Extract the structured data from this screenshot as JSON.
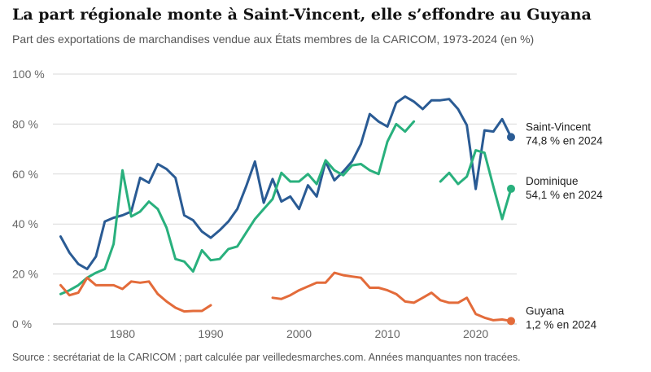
{
  "title": "La part régionale monte à Saint-Vincent, elle s’effondre au Guyana",
  "subtitle": "Part des exportations de marchandises vendue aux États membres de la CARICOM, 1973-2024 (en %)",
  "source": "Source : secrétariat de la CARICOM ; part calculée par veilledesmarches.com. Années manquantes non tracées.",
  "colors": {
    "saint_vincent": "#2a5b94",
    "dominique": "#29b07d",
    "guyana": "#e36b3a",
    "grid": "#d9d9d9"
  },
  "chart_data": {
    "type": "line",
    "xlim": [
      1973,
      2024
    ],
    "ylim": [
      0,
      100
    ],
    "x_ticks": [
      1980,
      1990,
      2000,
      2010,
      2020
    ],
    "y_ticks": [
      0,
      20,
      40,
      60,
      80,
      100
    ],
    "y_tick_labels": [
      "0 %",
      "20 %",
      "40 %",
      "60 %",
      "80 %",
      "100 %"
    ],
    "grid": true,
    "series": [
      {
        "name": "Saint-Vincent",
        "key": "saint_vincent",
        "end_label": "74,8 % en 2024",
        "points": [
          [
            1973,
            35
          ],
          [
            1974,
            28.5
          ],
          [
            1975,
            24
          ],
          [
            1976,
            22
          ],
          [
            1977,
            27
          ],
          [
            1978,
            41
          ],
          [
            1979,
            42.5
          ],
          [
            1980,
            43.5
          ],
          [
            1981,
            45
          ],
          [
            1982,
            58.5
          ],
          [
            1983,
            56.5
          ],
          [
            1984,
            64
          ],
          [
            1985,
            62
          ],
          [
            1986,
            58.5
          ],
          [
            1987,
            43.5
          ],
          [
            1988,
            41.5
          ],
          [
            1989,
            37
          ],
          [
            1990,
            34.5
          ],
          [
            1991,
            37.5
          ],
          [
            1992,
            41
          ],
          [
            1993,
            46
          ],
          [
            1994,
            55
          ],
          [
            1995,
            65
          ],
          [
            1996,
            48.5
          ],
          [
            1997,
            58
          ],
          [
            1998,
            49
          ],
          [
            1999,
            51
          ],
          [
            2000,
            46
          ],
          [
            2001,
            55.5
          ],
          [
            2002,
            51
          ],
          [
            2003,
            65
          ],
          [
            2004,
            57.5
          ],
          [
            2005,
            61
          ],
          [
            2006,
            65
          ],
          [
            2007,
            72
          ],
          [
            2008,
            84
          ],
          [
            2009,
            81
          ],
          [
            2010,
            79
          ],
          [
            2011,
            88.5
          ],
          [
            2012,
            91
          ],
          [
            2013,
            89
          ],
          [
            2014,
            86
          ],
          [
            2015,
            89.5
          ],
          [
            2016,
            89.5
          ],
          [
            2017,
            90
          ],
          [
            2018,
            86
          ],
          [
            2019,
            79.5
          ],
          [
            2020,
            54
          ],
          [
            2021,
            77.5
          ],
          [
            2022,
            77
          ],
          [
            2023,
            82
          ],
          [
            2024,
            74.8
          ]
        ]
      },
      {
        "name": "Dominique",
        "key": "dominique",
        "end_label": "54,1 % en 2024",
        "points": [
          [
            1973,
            12
          ],
          [
            1974,
            13.5
          ],
          [
            1975,
            15.5
          ],
          [
            1976,
            18.5
          ],
          [
            1977,
            20.5
          ],
          [
            1978,
            22
          ],
          [
            1979,
            32
          ],
          [
            1980,
            61.5
          ],
          [
            1981,
            43
          ],
          [
            1982,
            45
          ],
          [
            1983,
            49
          ],
          [
            1984,
            46
          ],
          [
            1985,
            38.5
          ],
          [
            1986,
            26
          ],
          [
            1987,
            25
          ],
          [
            1988,
            21
          ],
          [
            1989,
            29.5
          ],
          [
            1990,
            25.5
          ],
          [
            1991,
            26
          ],
          [
            1992,
            30
          ],
          [
            1993,
            31
          ],
          [
            1994,
            36.5
          ],
          [
            1995,
            42
          ],
          [
            1996,
            46
          ],
          [
            1997,
            50
          ],
          [
            1998,
            60.5
          ],
          [
            1999,
            57
          ],
          [
            2000,
            57
          ],
          [
            2001,
            60
          ],
          [
            2002,
            56
          ],
          [
            2003,
            65.5
          ],
          [
            2004,
            61.5
          ],
          [
            2005,
            59.5
          ],
          [
            2006,
            63.5
          ],
          [
            2007,
            64
          ],
          [
            2008,
            61.5
          ],
          [
            2009,
            60
          ],
          [
            2010,
            73
          ],
          [
            2011,
            80
          ],
          [
            2012,
            77
          ],
          [
            2013,
            81
          ],
          null,
          [
            2016,
            57
          ],
          [
            2017,
            60.5
          ],
          [
            2018,
            56
          ],
          [
            2019,
            59
          ],
          [
            2020,
            69.5
          ],
          [
            2021,
            68.5
          ],
          [
            2022,
            55
          ],
          [
            2023,
            42
          ],
          [
            2024,
            54.1
          ]
        ]
      },
      {
        "name": "Guyana",
        "key": "guyana",
        "end_label": "1,2 % en 2024",
        "points": [
          [
            1973,
            15.5
          ],
          [
            1974,
            11.5
          ],
          [
            1975,
            12.5
          ],
          [
            1976,
            18.5
          ],
          [
            1977,
            15.5
          ],
          [
            1978,
            15.5
          ],
          [
            1979,
            15.5
          ],
          [
            1980,
            14
          ],
          [
            1981,
            17
          ],
          [
            1982,
            16.5
          ],
          [
            1983,
            17
          ],
          [
            1984,
            12
          ],
          [
            1985,
            9
          ],
          [
            1986,
            6.5
          ],
          [
            1987,
            5
          ],
          [
            1988,
            5.2
          ],
          [
            1989,
            5.2
          ],
          [
            1990,
            7.5
          ],
          null,
          [
            1997,
            10.5
          ],
          [
            1998,
            10
          ],
          [
            1999,
            11.5
          ],
          [
            2000,
            13.5
          ],
          [
            2001,
            15
          ],
          [
            2002,
            16.5
          ],
          [
            2003,
            16.5
          ],
          [
            2004,
            20.5
          ],
          [
            2005,
            19.5
          ],
          [
            2006,
            19
          ],
          [
            2007,
            18.5
          ],
          [
            2008,
            14.5
          ],
          [
            2009,
            14.5
          ],
          [
            2010,
            13.5
          ],
          [
            2011,
            12
          ],
          [
            2012,
            9
          ],
          [
            2013,
            8.5
          ],
          [
            2014,
            10.5
          ],
          [
            2015,
            12.5
          ],
          [
            2016,
            9.5
          ],
          [
            2017,
            8.5
          ],
          [
            2018,
            8.5
          ],
          [
            2019,
            10.5
          ],
          [
            2020,
            4
          ],
          [
            2021,
            2.5
          ],
          [
            2022,
            1.5
          ],
          [
            2023,
            1.8
          ],
          [
            2024,
            1.2
          ]
        ]
      }
    ]
  }
}
